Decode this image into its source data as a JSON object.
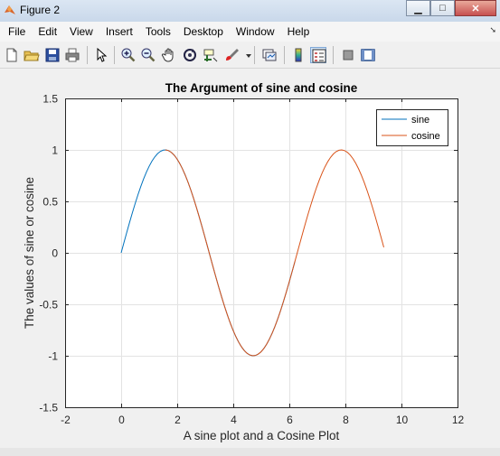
{
  "window": {
    "title": "Figure 2"
  },
  "menu": [
    "File",
    "Edit",
    "View",
    "Insert",
    "Tools",
    "Desktop",
    "Window",
    "Help"
  ],
  "toolbar_icons": [
    "new-figure-icon",
    "open-file-icon",
    "save-icon",
    "print-icon",
    "pointer-icon",
    "zoom-in-icon",
    "zoom-out-icon",
    "pan-icon",
    "rotate-3d-icon",
    "data-cursor-icon",
    "brush-icon",
    "brush-dropdown-icon",
    "link-plot-icon",
    "colorbar-icon",
    "legend-icon",
    "hide-plot-tools-icon",
    "show-plot-tools-icon"
  ],
  "chart_data": {
    "type": "line",
    "title": "The Argument of sine and cosine",
    "xlabel": "A sine plot and a Cosine Plot",
    "ylabel": "The values of sine or cosine",
    "xlim": [
      -2,
      12
    ],
    "ylim": [
      -1.5,
      1.5
    ],
    "xticks": [
      "-2",
      "0",
      "2",
      "4",
      "6",
      "8",
      "10",
      "12"
    ],
    "yticks": [
      "1.5",
      "1",
      "0.5",
      "0",
      "-0.5",
      "-1",
      "-1.5"
    ],
    "grid": true,
    "legend_position": "top-right",
    "series": [
      {
        "name": "sine",
        "color": "#0072bd",
        "x_start": 0,
        "x_end": 6.2,
        "x_step": 0.1,
        "function": "sin"
      },
      {
        "name": "cosine",
        "color": "#d95319",
        "x_start": 1.5708,
        "x_end": 9.4248,
        "x_step": 0.1,
        "function": "cos(x - pi/2)"
      }
    ]
  }
}
